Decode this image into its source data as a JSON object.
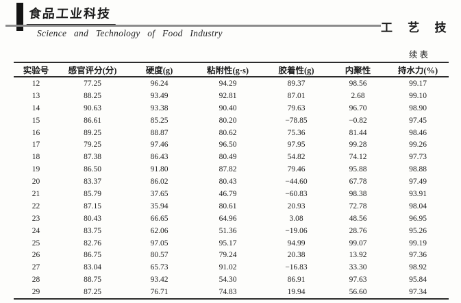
{
  "header": {
    "journal_logo": "食品工业科技",
    "journal_subtitle": "Science  and  Technology  of  Food  Industry",
    "section_label": "工 艺 技 术",
    "continued_label": "续表"
  },
  "table": {
    "columns": [
      "实验号",
      "感官评分(分)",
      "硬度(g)",
      "粘附性(g·s)",
      "胶着性(g)",
      "内聚性",
      "持水力(%)"
    ],
    "rows": [
      [
        "12",
        "77.25",
        "96.24",
        "94.29",
        "89.37",
        "98.56",
        "99.17"
      ],
      [
        "13",
        "88.25",
        "93.49",
        "92.81",
        "87.01",
        "2.68",
        "99.10"
      ],
      [
        "14",
        "90.63",
        "93.38",
        "90.40",
        "79.63",
        "96.70",
        "98.90"
      ],
      [
        "15",
        "86.61",
        "85.25",
        "80.20",
        "−78.85",
        "−0.82",
        "97.45"
      ],
      [
        "16",
        "89.25",
        "88.87",
        "80.62",
        "75.36",
        "81.44",
        "98.46"
      ],
      [
        "17",
        "79.25",
        "97.46",
        "96.50",
        "97.95",
        "99.28",
        "99.26"
      ],
      [
        "18",
        "87.38",
        "86.43",
        "80.49",
        "54.82",
        "74.12",
        "97.73"
      ],
      [
        "19",
        "86.50",
        "91.80",
        "87.82",
        "79.46",
        "95.88",
        "98.88"
      ],
      [
        "20",
        "83.37",
        "86.02",
        "80.43",
        "−44.60",
        "67.78",
        "97.49"
      ],
      [
        "21",
        "85.79",
        "37.65",
        "46.79",
        "−60.83",
        "98.38",
        "93.91"
      ],
      [
        "22",
        "87.15",
        "35.94",
        "80.61",
        "20.93",
        "72.78",
        "98.04"
      ],
      [
        "23",
        "80.43",
        "66.65",
        "64.96",
        "3.08",
        "48.56",
        "96.95"
      ],
      [
        "24",
        "83.75",
        "62.06",
        "51.36",
        "−19.06",
        "28.76",
        "95.26"
      ],
      [
        "25",
        "82.76",
        "97.05",
        "95.17",
        "94.99",
        "99.07",
        "99.19"
      ],
      [
        "26",
        "86.75",
        "80.57",
        "79.24",
        "20.38",
        "13.92",
        "97.36"
      ],
      [
        "27",
        "83.04",
        "65.73",
        "91.02",
        "−16.83",
        "33.30",
        "98.92"
      ],
      [
        "28",
        "88.75",
        "93.42",
        "54.30",
        "86.91",
        "97.63",
        "95.84"
      ],
      [
        "29",
        "87.25",
        "76.71",
        "74.83",
        "19.94",
        "56.60",
        "97.34"
      ]
    ]
  }
}
